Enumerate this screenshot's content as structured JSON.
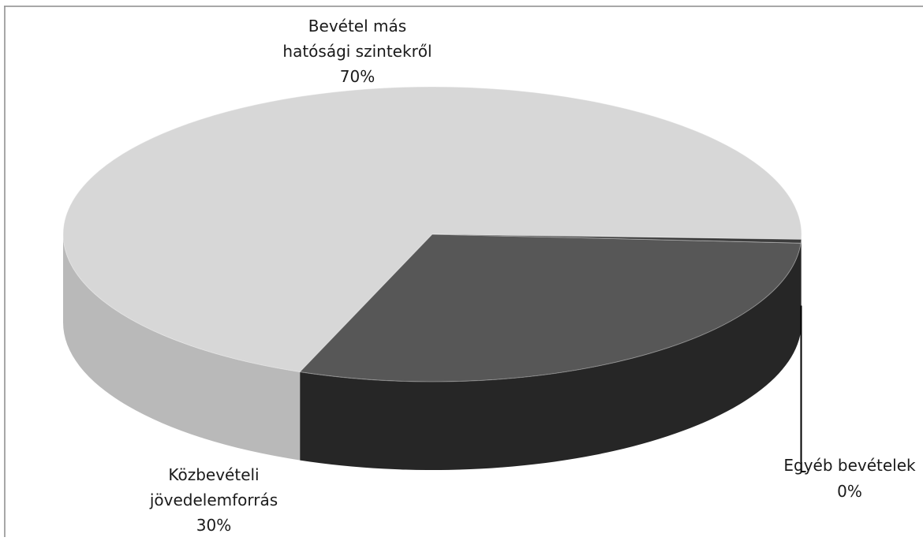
{
  "chart_data": {
    "type": "pie",
    "title": "",
    "legend": "none",
    "slices": [
      {
        "label_lines": [
          "Bevétel más",
          "hatósági szintekről"
        ],
        "value_label": "70%",
        "value": 70,
        "color": "#d7d7d7",
        "side_color": "#b9b9b9"
      },
      {
        "label_lines": [
          "Közbevételi",
          "jövedelemforrás"
        ],
        "value_label": "30%",
        "value": 30,
        "color": "#575757",
        "side_color": "#262626"
      },
      {
        "label_lines": [
          "Egyéb bevételek"
        ],
        "value_label": "0%",
        "value": 0.4,
        "color": "#3c3c3c",
        "side_color": "#1b1b1b"
      }
    ]
  }
}
